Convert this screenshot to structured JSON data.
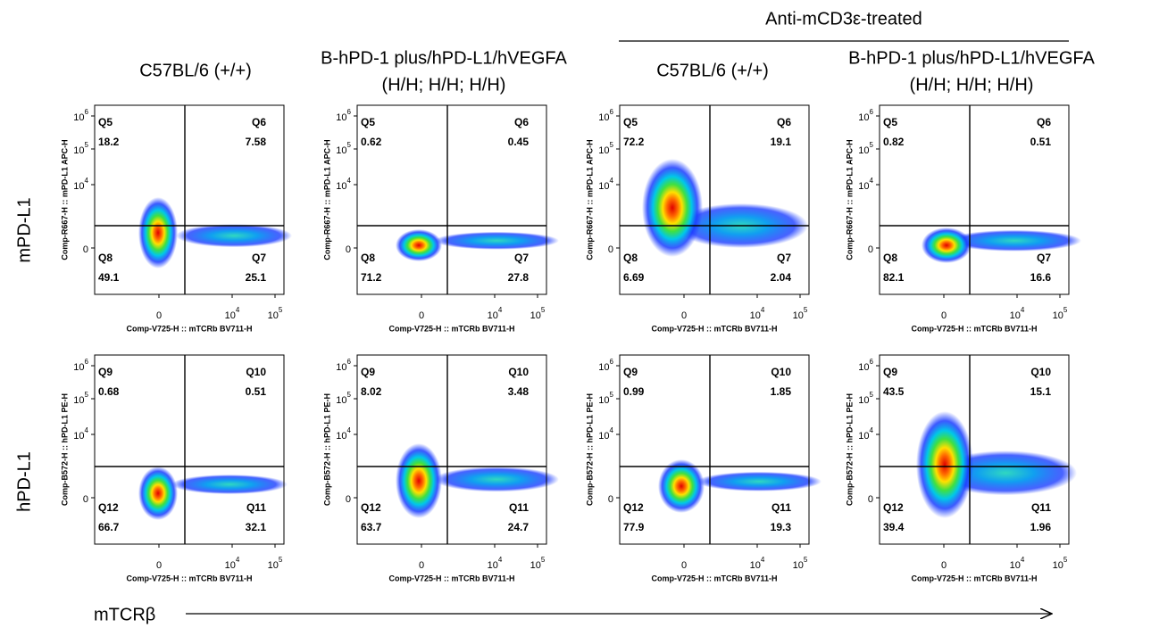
{
  "header": {
    "treated_label": "Anti-mCD3ε-treated"
  },
  "columns": [
    {
      "lines": [
        "C57BL/6 (+/+)"
      ]
    },
    {
      "lines": [
        "B-hPD-1 plus/hPD-L1/hVEGFA",
        "(H/H; H/H; H/H)"
      ]
    },
    {
      "lines": [
        "C57BL/6 (+/+)"
      ]
    },
    {
      "lines": [
        "B-hPD-1 plus/hPD-L1/hVEGFA",
        "(H/H; H/H; H/H)"
      ]
    }
  ],
  "rows": [
    {
      "label": "mPD-L1",
      "y_axis_title": "Comp-R667-H :: mPD-L1 APC-H"
    },
    {
      "label": "hPD-L1",
      "y_axis_title": "Comp-B572-H :: hPD-L1 PE-H"
    }
  ],
  "x_axis_title": "Comp-V725-H :: mTCRb BV711-H",
  "y_ticks": [
    {
      "base": "10",
      "exp": "6"
    },
    {
      "base": "10",
      "exp": "5"
    },
    {
      "base": "10",
      "exp": "4"
    },
    {
      "base": "0"
    }
  ],
  "x_ticks": [
    {
      "base": "0"
    },
    {
      "base": "10",
      "exp": "4"
    },
    {
      "base": "10",
      "exp": "5"
    }
  ],
  "panels": [
    {
      "quadrants": [
        {
          "name": "Q5",
          "value": 18.2
        },
        {
          "name": "Q6",
          "value": 7.58
        },
        {
          "name": "Q8",
          "value": 49.1
        },
        {
          "name": "Q7",
          "value": 25.1
        }
      ]
    },
    {
      "quadrants": [
        {
          "name": "Q5",
          "value": 0.62
        },
        {
          "name": "Q6",
          "value": 0.45
        },
        {
          "name": "Q8",
          "value": 71.2
        },
        {
          "name": "Q7",
          "value": 27.8
        }
      ]
    },
    {
      "quadrants": [
        {
          "name": "Q5",
          "value": 72.2
        },
        {
          "name": "Q6",
          "value": 19.1
        },
        {
          "name": "Q8",
          "value": 6.69
        },
        {
          "name": "Q7",
          "value": 2.04
        }
      ]
    },
    {
      "quadrants": [
        {
          "name": "Q5",
          "value": 0.82
        },
        {
          "name": "Q6",
          "value": 0.51
        },
        {
          "name": "Q8",
          "value": 82.1
        },
        {
          "name": "Q7",
          "value": 16.6
        }
      ]
    },
    {
      "quadrants": [
        {
          "name": "Q9",
          "value": 0.68
        },
        {
          "name": "Q10",
          "value": 0.51
        },
        {
          "name": "Q12",
          "value": 66.7
        },
        {
          "name": "Q11",
          "value": 32.1
        }
      ]
    },
    {
      "quadrants": [
        {
          "name": "Q9",
          "value": 8.02
        },
        {
          "name": "Q10",
          "value": 3.48
        },
        {
          "name": "Q12",
          "value": 63.7
        },
        {
          "name": "Q11",
          "value": 24.7
        }
      ]
    },
    {
      "quadrants": [
        {
          "name": "Q9",
          "value": 0.99
        },
        {
          "name": "Q10",
          "value": 1.85
        },
        {
          "name": "Q12",
          "value": 77.9
        },
        {
          "name": "Q11",
          "value": 19.3
        }
      ]
    },
    {
      "quadrants": [
        {
          "name": "Q9",
          "value": 43.5
        },
        {
          "name": "Q10",
          "value": 15.1
        },
        {
          "name": "Q12",
          "value": 39.4
        },
        {
          "name": "Q11",
          "value": 1.96
        }
      ]
    }
  ],
  "footer": {
    "x_label": "mTCRβ"
  }
}
